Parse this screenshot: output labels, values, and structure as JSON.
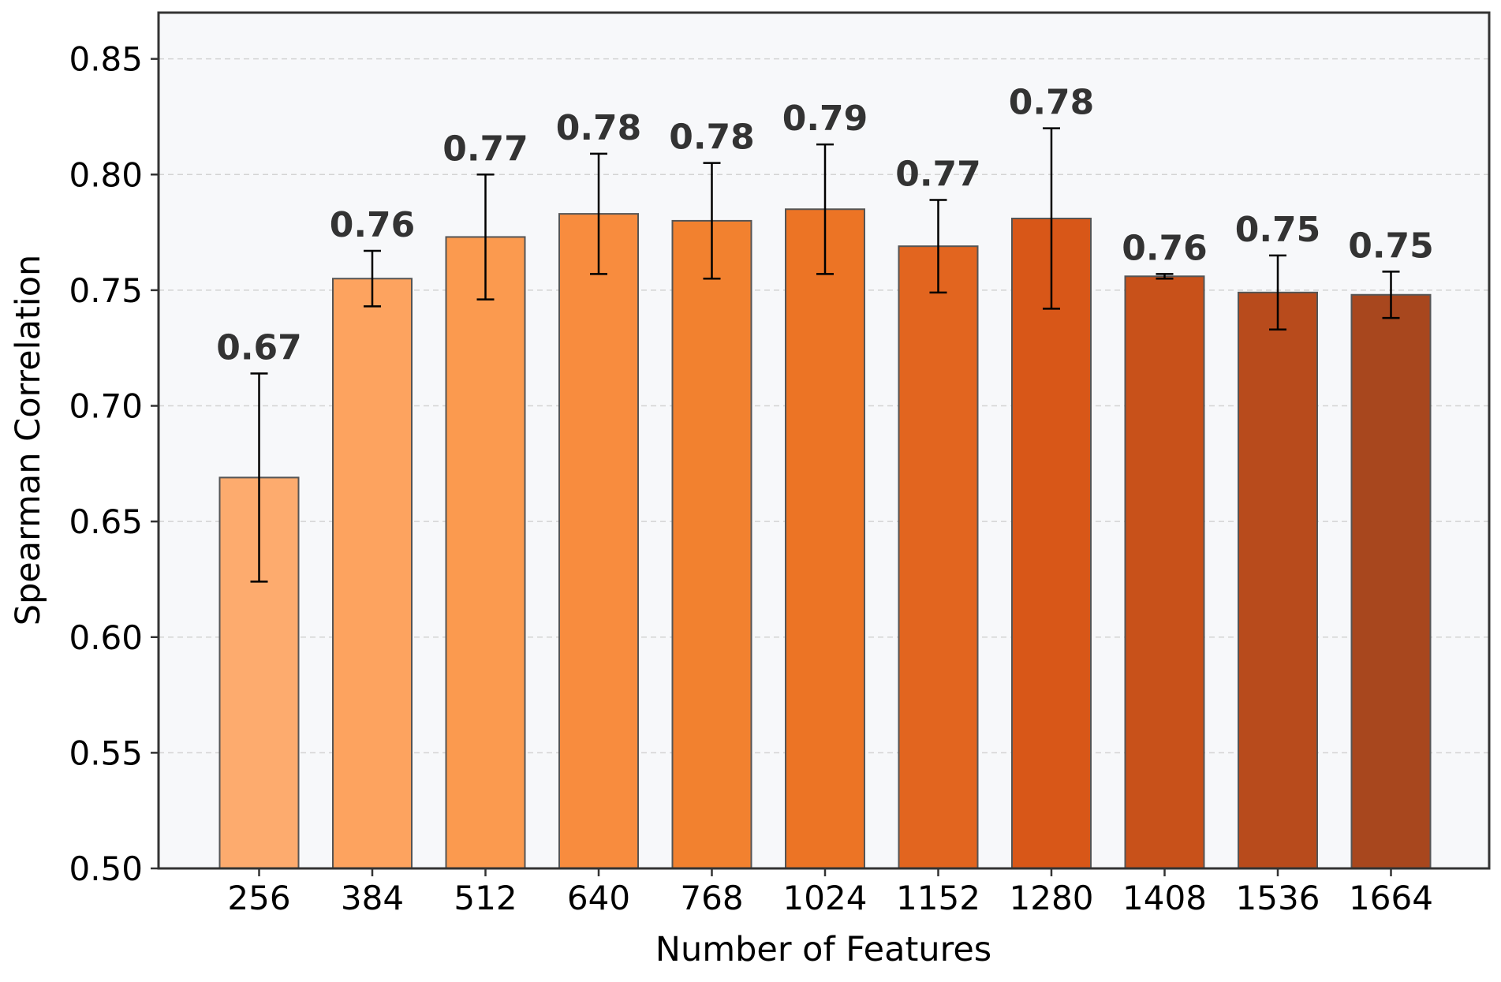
{
  "chart_data": {
    "type": "bar",
    "xlabel": "Number of Features",
    "ylabel": "Spearman Correlation",
    "categories": [
      "256",
      "384",
      "512",
      "640",
      "768",
      "1024",
      "1152",
      "1280",
      "1408",
      "1536",
      "1664"
    ],
    "values": [
      0.669,
      0.755,
      0.773,
      0.783,
      0.78,
      0.785,
      0.769,
      0.781,
      0.756,
      0.749,
      0.748
    ],
    "error": [
      0.045,
      0.012,
      0.027,
      0.026,
      0.025,
      0.028,
      0.02,
      0.039,
      0.001,
      0.016,
      0.01
    ],
    "data_labels": [
      "0.67",
      "0.76",
      "0.77",
      "0.78",
      "0.78",
      "0.79",
      "0.77",
      "0.78",
      "0.76",
      "0.75",
      "0.75"
    ],
    "ylim": [
      0.5,
      0.87
    ],
    "yticks": [
      "0.50",
      "0.55",
      "0.60",
      "0.65",
      "0.70",
      "0.75",
      "0.80",
      "0.85"
    ],
    "grid": "horizontal-dashed",
    "colors": {
      "bars": [
        "#fdab6e",
        "#fda35f",
        "#fb9a4f",
        "#f88c3e",
        "#f2812f",
        "#ec7425",
        "#e2651f",
        "#d85718",
        "#c8511a",
        "#b84b1c",
        "#a8471e"
      ],
      "plot_background": "#f7f8fa",
      "grid": "#d3d3d3",
      "bar_edge": "#555555",
      "error_bar": "#000000",
      "label": "#333333"
    }
  }
}
